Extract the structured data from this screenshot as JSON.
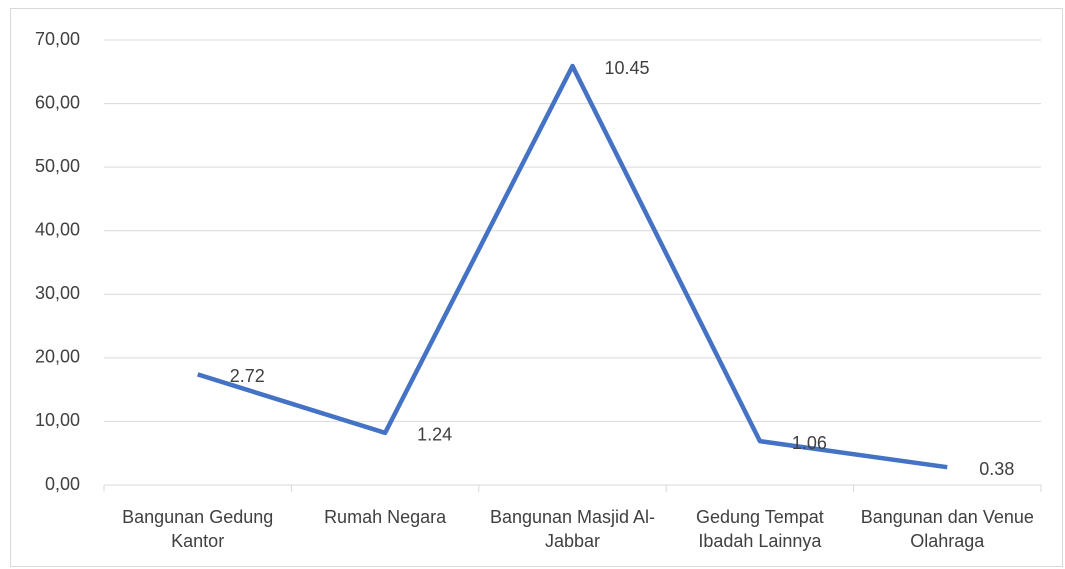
{
  "chart_data": {
    "type": "line",
    "categories": [
      "Bangunan Gedung Kantor",
      "Rumah Negara",
      "Bangunan Masjid Al-Jabbar",
      "Gedung Tempat Ibadah Lainnya",
      "Bangunan dan Venue Olahraga"
    ],
    "series": [
      {
        "color": "#4472c4",
        "values": [
          17.4,
          8.2,
          65.9,
          6.9,
          2.8
        ]
      }
    ],
    "point_labels": [
      2.72,
      1.24,
      10.45,
      1.06,
      0.38
    ],
    "ylim": [
      0,
      70
    ],
    "yticks": [
      {
        "value": 0,
        "label": "0,00"
      },
      {
        "value": 10,
        "label": "10,00"
      },
      {
        "value": 20,
        "label": "20,00"
      },
      {
        "value": 30,
        "label": "30,00"
      },
      {
        "value": 40,
        "label": "40,00"
      },
      {
        "value": 50,
        "label": "50,00"
      },
      {
        "value": 60,
        "label": "60,00"
      },
      {
        "value": 70,
        "label": "70,00"
      }
    ],
    "grid": true
  }
}
